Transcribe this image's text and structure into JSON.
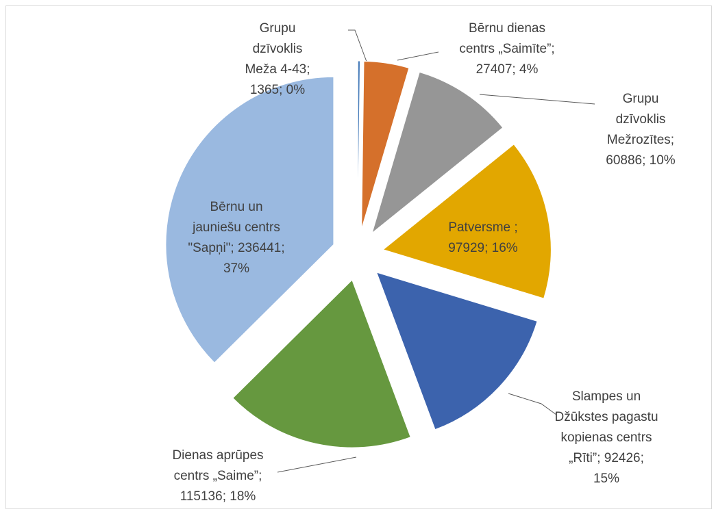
{
  "chart_data": {
    "type": "pie",
    "values": [
      1365,
      27407,
      60886,
      97929,
      92426,
      115136,
      236441
    ],
    "value_labels": [
      [
        "Grupu",
        "dzīvoklis",
        "Meža 4-43;",
        "1365; 0%"
      ],
      [
        "Bērnu dienas",
        "centrs „Saimīte”;",
        "27407; 4%"
      ],
      [
        "Grupu",
        "dzīvoklis",
        "Mežrozītes;",
        "60886; 10%"
      ],
      [
        "Patversme ;",
        "97929; 16%"
      ],
      [
        "Slampes un",
        "Džūkstes pagastu",
        "kopienas centrs",
        "„Rīti”; 92426;",
        "15%"
      ],
      [
        "Dienas aprūpes",
        "centrs „Saime”;",
        "115136; 18%"
      ],
      [
        "Bērnu un",
        "jauniešu centrs",
        "\"Sapņi\"; 236441;",
        "37%"
      ]
    ],
    "colors": [
      "#4a7ebb",
      "#d5702b",
      "#969696",
      "#e2a700",
      "#3c63ad",
      "#66983f",
      "#9ab9e0"
    ]
  }
}
